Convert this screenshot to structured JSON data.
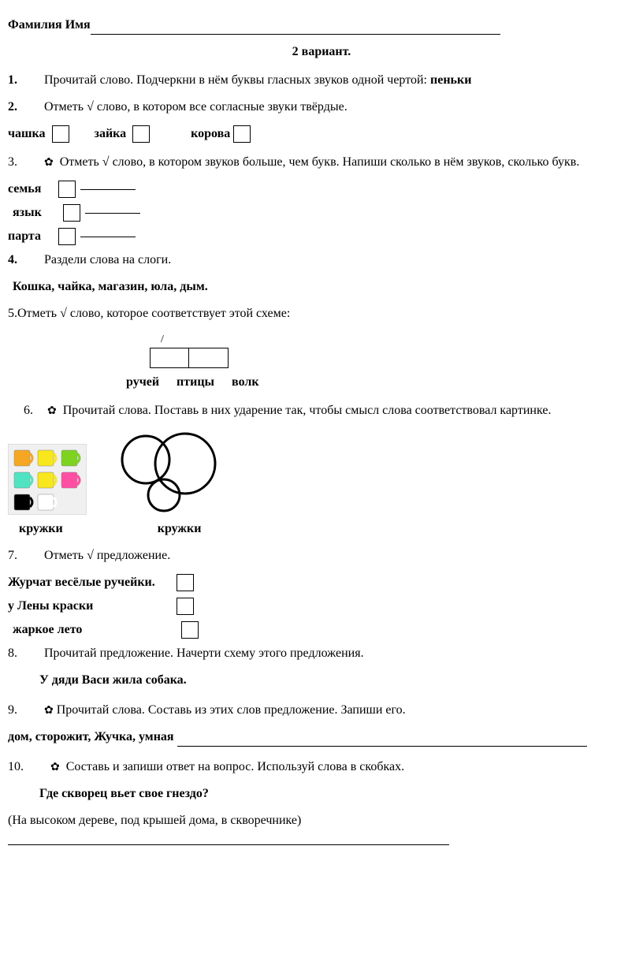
{
  "header": {
    "name_label": "Фамилия Имя",
    "title": "2    вариант."
  },
  "q1": {
    "num": "1.",
    "text": "Прочитай слово. Подчеркни в нём буквы гласных звуков одной чертой: ",
    "word": "пеньки"
  },
  "q2": {
    "num": "2.",
    "text": "Отметь √ слово, в котором все согласные звуки твёрдые.",
    "w1": "чашка",
    "w2": "зайка",
    "w3": "корова"
  },
  "q3": {
    "num": "3.",
    "flower": "✿",
    "text": " Отметь √  слово, в котором звуков больше, чем букв. Напиши сколько в нём звуков, сколько букв.",
    "w1": "семья",
    "w2": "язык",
    "w3": "парта"
  },
  "q4": {
    "num": "4.",
    "text": "Раздели слова на слоги.",
    "words": "Кошка, чайка, магазин, юла, дым."
  },
  "q5": {
    "num": "5.",
    "text": "Отметь √ слово, которое соответствует этой схеме:",
    "stress": "/",
    "w1": "ручей",
    "w2": "птицы",
    "w3": "волк"
  },
  "q6": {
    "num": "6.",
    "flower": "✿",
    "text": " Прочитай слова. Поставь в них ударение так, чтобы смысл слова соответствовал картинке.",
    "label1": "кружки",
    "label2": "кружки",
    "mug_colors": [
      "#f5a623",
      "#f8e71c",
      "#7ed321",
      "#50e3c2",
      "#f8e71c",
      "#ff4fa3",
      "#000000",
      "#ffffff"
    ],
    "mug_bg": "#f0f0f0",
    "mug_border": "#cccccc",
    "circle_stroke": "#000000"
  },
  "q7": {
    "num": "7.",
    "text": "Отметь √ предложение.",
    "s1": "Журчат весёлые ручейки.",
    "s2": "у Лены краски",
    "s3": "жаркое лето"
  },
  "q8": {
    "num": "8.",
    "text": "Прочитай предложение. Начерти схему этого предложения.",
    "sentence": "У дяди Васи жила собака."
  },
  "q9": {
    "num": "9.",
    "flower": "✿",
    "text": "Прочитай слова. Составь из этих слов предложение. Запиши его.",
    "words": "дом, сторожит, Жучка, умная "
  },
  "q10": {
    "num": "10.",
    "flower": "✿",
    "text": " Составь и запиши ответ на вопрос. Используй слова в скобках.",
    "question": "Где скворец вьет свое гнездо?",
    "hint": "(На высоком дереве, под крышей дома, в скворечнике)"
  }
}
